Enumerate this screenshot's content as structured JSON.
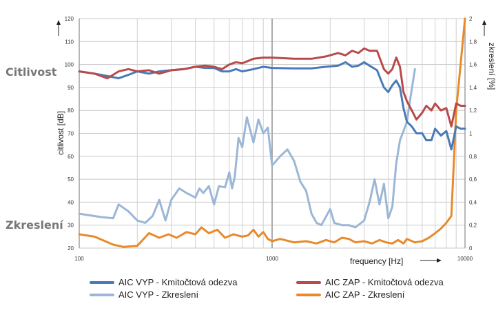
{
  "labels": {
    "sensitivity": "Citlivost",
    "distortion": "Zkreslení"
  },
  "legend": [
    {
      "label": "AIC VYP - Kmitočtová odezva",
      "color": "#4a7ab8"
    },
    {
      "label": "AIC ZAP - Kmitočtová odezva",
      "color": "#b84a4a"
    },
    {
      "label": "AIC VYP - Zkreslení",
      "color": "#9bb6d6"
    },
    {
      "label": "AIC ZAP - Zkreslení",
      "color": "#e88a2a"
    }
  ],
  "chart_data": {
    "type": "line",
    "xlabel": "frequency [Hz]",
    "ylabel": "citlivost [dB]",
    "y2label": "zkreslení [%]",
    "xscale": "log",
    "xlim": [
      100,
      10000
    ],
    "ylim": [
      20,
      120
    ],
    "y2lim": [
      0,
      2
    ],
    "xticks": [
      "100",
      "1000",
      "10000"
    ],
    "yticks": [
      "20",
      "30",
      "40",
      "50",
      "60",
      "70",
      "80",
      "90",
      "100",
      "110",
      "120"
    ],
    "y2ticks": [
      "0",
      "0,2",
      "0,4",
      "0,6",
      "0,8",
      "1",
      "1,2",
      "1,4",
      "1,6",
      "1,8",
      "2"
    ],
    "grid": true,
    "series": [
      {
        "name": "AIC VYP - Kmitočtová odezva",
        "axis": "left",
        "color": "#4a7ab8",
        "x": [
          100,
          120,
          140,
          160,
          180,
          200,
          230,
          260,
          300,
          350,
          400,
          450,
          500,
          550,
          600,
          650,
          700,
          800,
          900,
          1000,
          1300,
          1600,
          1900,
          2200,
          2400,
          2600,
          2800,
          3000,
          3200,
          3500,
          3800,
          4000,
          4200,
          4400,
          4600,
          4800,
          5000,
          5300,
          5600,
          6000,
          6300,
          6700,
          7000,
          7500,
          8000,
          8500,
          9000,
          9500,
          10000
        ],
        "y": [
          97,
          96,
          95,
          94,
          95.5,
          97,
          96,
          97,
          97.5,
          98,
          99,
          98.5,
          98.5,
          97,
          97,
          98,
          97,
          98,
          99,
          98.5,
          98.3,
          98.3,
          99,
          99.5,
          101,
          99,
          99.5,
          101,
          99.5,
          97.5,
          90,
          88,
          91,
          93,
          90,
          81,
          75,
          73,
          70,
          70,
          67,
          67,
          72,
          69,
          71,
          63,
          73,
          72,
          72
        ]
      },
      {
        "name": "AIC ZAP - Kmitočtová odezva",
        "axis": "left",
        "color": "#b84a4a",
        "x": [
          100,
          120,
          140,
          160,
          180,
          200,
          230,
          260,
          300,
          350,
          400,
          450,
          500,
          550,
          600,
          650,
          700,
          800,
          900,
          1000,
          1300,
          1600,
          1900,
          2200,
          2400,
          2600,
          2800,
          3000,
          3200,
          3500,
          3800,
          4000,
          4200,
          4400,
          4600,
          4800,
          5000,
          5300,
          5600,
          6000,
          6300,
          6700,
          7000,
          7500,
          8000,
          8500,
          9000,
          9500,
          10000
        ],
        "y": [
          97,
          96,
          94,
          97,
          98,
          97,
          97.5,
          96,
          97.5,
          98,
          99,
          99.5,
          99,
          98,
          100,
          101,
          100.5,
          102.5,
          103,
          103,
          102.5,
          102.5,
          103.5,
          105,
          104,
          106,
          105,
          107,
          106,
          106,
          98,
          96,
          98,
          103,
          99,
          88,
          84,
          80,
          76,
          79,
          82,
          80,
          83,
          80,
          81,
          73,
          83,
          82,
          82
        ]
      },
      {
        "name": "AIC VYP - Zkreslení",
        "axis": "right",
        "color": "#9bb6d6",
        "x": [
          100,
          130,
          150,
          160,
          180,
          200,
          220,
          240,
          260,
          280,
          300,
          330,
          360,
          400,
          420,
          440,
          470,
          500,
          530,
          570,
          600,
          620,
          640,
          670,
          700,
          740,
          800,
          850,
          900,
          950,
          1000,
          1100,
          1200,
          1300,
          1400,
          1500,
          1600,
          1700,
          1800,
          2000,
          2100,
          2300,
          2500,
          2700,
          3000,
          3200,
          3400,
          3600,
          3800,
          4000,
          4200,
          4400,
          4600,
          4800,
          5000,
          5200,
          5500
        ],
        "y": [
          0.3,
          0.27,
          0.26,
          0.38,
          0.32,
          0.24,
          0.22,
          0.28,
          0.42,
          0.24,
          0.42,
          0.52,
          0.48,
          0.44,
          0.52,
          0.48,
          0.54,
          0.38,
          0.54,
          0.53,
          0.66,
          0.52,
          0.62,
          0.96,
          0.88,
          1.14,
          0.92,
          1.12,
          1.0,
          1.05,
          0.72,
          0.8,
          0.86,
          0.76,
          0.58,
          0.5,
          0.3,
          0.22,
          0.2,
          0.34,
          0.22,
          0.2,
          0.2,
          0.18,
          0.24,
          0.4,
          0.6,
          0.38,
          0.56,
          0.26,
          0.36,
          0.74,
          0.94,
          1.02,
          1.1,
          1.3,
          1.56
        ]
      },
      {
        "name": "AIC ZAP - Zkreslení",
        "axis": "right",
        "color": "#e88a2a",
        "x": [
          100,
          120,
          150,
          170,
          200,
          230,
          260,
          290,
          320,
          360,
          400,
          430,
          470,
          520,
          570,
          630,
          700,
          750,
          800,
          850,
          900,
          950,
          1000,
          1100,
          1300,
          1500,
          1700,
          1900,
          2100,
          2300,
          2500,
          2700,
          3000,
          3300,
          3600,
          3900,
          4200,
          4500,
          4800,
          5000,
          5500,
          6000,
          6500,
          7000,
          7500,
          8000,
          8500,
          9000,
          10000
        ],
        "y": [
          0.12,
          0.1,
          0.03,
          0.01,
          0.02,
          0.13,
          0.09,
          0.12,
          0.09,
          0.14,
          0.12,
          0.18,
          0.13,
          0.16,
          0.09,
          0.12,
          0.1,
          0.11,
          0.16,
          0.1,
          0.14,
          0.08,
          0.06,
          0.08,
          0.05,
          0.06,
          0.04,
          0.07,
          0.05,
          0.09,
          0.08,
          0.05,
          0.06,
          0.04,
          0.07,
          0.05,
          0.04,
          0.07,
          0.04,
          0.08,
          0.05,
          0.06,
          0.09,
          0.13,
          0.17,
          0.22,
          0.28,
          1.2,
          2.0
        ]
      }
    ]
  }
}
